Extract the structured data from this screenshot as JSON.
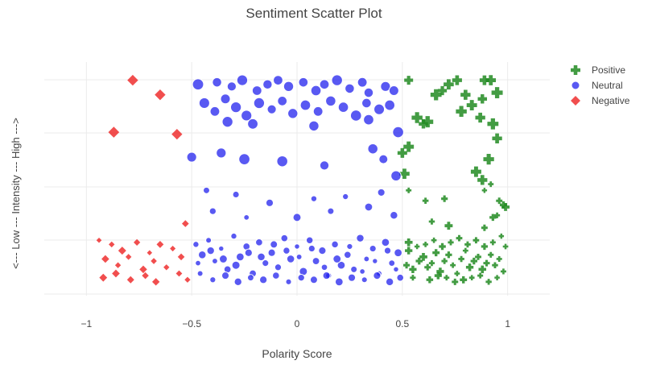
{
  "chart_data": {
    "type": "scatter",
    "title": "Sentiment Scatter Plot",
    "xlabel": "Polarity Score",
    "ylabel": "<--- Low --- Intensity --- High --->",
    "xlim": [
      -1.2,
      1.2
    ],
    "ylim": [
      0,
      1
    ],
    "x_ticks": [
      -1,
      -0.5,
      0,
      0.5,
      1
    ],
    "x_tick_labels": [
      "−1",
      "−0.5",
      "0",
      "0.5",
      "1"
    ],
    "y_tick_labels_shown": false,
    "grid": true,
    "legend_position": "top-right",
    "series": [
      {
        "name": "Positive",
        "marker": "cross",
        "color": "#228B22",
        "points": [
          [
            0.53,
            0.99
          ],
          [
            0.66,
            0.92
          ],
          [
            0.69,
            0.94
          ],
          [
            0.72,
            0.97
          ],
          [
            0.76,
            0.99
          ],
          [
            0.8,
            0.92
          ],
          [
            0.83,
            0.87
          ],
          [
            0.88,
            0.9
          ],
          [
            0.89,
            0.99
          ],
          [
            0.92,
            0.99
          ],
          [
            0.95,
            0.93
          ],
          [
            0.57,
            0.81
          ],
          [
            0.6,
            0.78
          ],
          [
            0.62,
            0.79
          ],
          [
            0.78,
            0.84
          ],
          [
            0.87,
            0.81
          ],
          [
            0.93,
            0.78
          ],
          [
            0.95,
            0.71
          ],
          [
            0.53,
            0.67
          ],
          [
            0.5,
            0.64
          ],
          [
            0.91,
            0.61
          ],
          [
            0.51,
            0.54
          ],
          [
            0.85,
            0.55
          ],
          [
            0.88,
            0.51
          ],
          [
            0.53,
            0.46
          ],
          [
            0.61,
            0.41
          ],
          [
            0.7,
            0.42
          ],
          [
            0.89,
            0.46
          ],
          [
            0.92,
            0.49
          ],
          [
            0.96,
            0.41
          ],
          [
            0.99,
            0.38
          ],
          [
            0.98,
            0.39
          ],
          [
            0.64,
            0.31
          ],
          [
            0.89,
            0.28
          ],
          [
            0.95,
            0.34
          ],
          [
            0.93,
            0.33
          ],
          [
            0.72,
            0.29
          ],
          [
            0.53,
            0.21
          ],
          [
            0.52,
            0.1
          ],
          [
            0.55,
            0.08
          ],
          [
            0.58,
            0.12
          ],
          [
            0.6,
            0.14
          ],
          [
            0.62,
            0.09
          ],
          [
            0.64,
            0.11
          ],
          [
            0.66,
            0.16
          ],
          [
            0.68,
            0.07
          ],
          [
            0.7,
            0.12
          ],
          [
            0.72,
            0.15
          ],
          [
            0.74,
            0.1
          ],
          [
            0.76,
            0.06
          ],
          [
            0.78,
            0.13
          ],
          [
            0.8,
            0.17
          ],
          [
            0.82,
            0.09
          ],
          [
            0.84,
            0.12
          ],
          [
            0.86,
            0.14
          ],
          [
            0.88,
            0.08
          ],
          [
            0.9,
            0.11
          ],
          [
            0.92,
            0.15
          ],
          [
            0.94,
            0.1
          ],
          [
            0.96,
            0.13
          ],
          [
            0.98,
            0.07
          ],
          [
            0.99,
            0.19
          ],
          [
            0.53,
            0.17
          ],
          [
            0.57,
            0.19
          ],
          [
            0.61,
            0.2
          ],
          [
            0.65,
            0.22
          ],
          [
            0.69,
            0.19
          ],
          [
            0.73,
            0.21
          ],
          [
            0.77,
            0.23
          ],
          [
            0.81,
            0.2
          ],
          [
            0.85,
            0.22
          ],
          [
            0.89,
            0.19
          ],
          [
            0.93,
            0.21
          ],
          [
            0.97,
            0.24
          ],
          [
            0.55,
            0.04
          ],
          [
            0.63,
            0.03
          ],
          [
            0.71,
            0.04
          ],
          [
            0.79,
            0.03
          ],
          [
            0.87,
            0.05
          ],
          [
            0.95,
            0.04
          ],
          [
            0.67,
            0.05
          ],
          [
            0.75,
            0.02
          ],
          [
            0.83,
            0.04
          ],
          [
            0.91,
            0.02
          ]
        ]
      },
      {
        "name": "Neutral",
        "marker": "circle",
        "color": "#2222EE",
        "points": [
          [
            -0.47,
            0.97
          ],
          [
            -0.38,
            0.98
          ],
          [
            -0.31,
            0.96
          ],
          [
            -0.26,
            0.99
          ],
          [
            -0.19,
            0.94
          ],
          [
            -0.14,
            0.97
          ],
          [
            -0.09,
            0.99
          ],
          [
            -0.04,
            0.96
          ],
          [
            0.03,
            0.98
          ],
          [
            0.09,
            0.94
          ],
          [
            0.13,
            0.97
          ],
          [
            0.19,
            0.99
          ],
          [
            0.25,
            0.95
          ],
          [
            0.31,
            0.98
          ],
          [
            0.34,
            0.93
          ],
          [
            0.42,
            0.96
          ],
          [
            0.46,
            0.94
          ],
          [
            -0.44,
            0.88
          ],
          [
            -0.39,
            0.84
          ],
          [
            -0.34,
            0.9
          ],
          [
            -0.29,
            0.86
          ],
          [
            -0.24,
            0.82
          ],
          [
            -0.18,
            0.88
          ],
          [
            -0.12,
            0.85
          ],
          [
            -0.07,
            0.89
          ],
          [
            -0.02,
            0.83
          ],
          [
            0.04,
            0.87
          ],
          [
            0.1,
            0.84
          ],
          [
            0.16,
            0.89
          ],
          [
            0.22,
            0.86
          ],
          [
            0.28,
            0.82
          ],
          [
            0.33,
            0.88
          ],
          [
            0.39,
            0.85
          ],
          [
            0.44,
            0.87
          ],
          [
            -0.33,
            0.79
          ],
          [
            -0.21,
            0.78
          ],
          [
            0.08,
            0.77
          ],
          [
            0.34,
            0.8
          ],
          [
            0.48,
            0.74
          ],
          [
            -0.5,
            0.62
          ],
          [
            -0.36,
            0.64
          ],
          [
            -0.25,
            0.61
          ],
          [
            -0.07,
            0.6
          ],
          [
            0.13,
            0.58
          ],
          [
            0.36,
            0.66
          ],
          [
            0.41,
            0.61
          ],
          [
            0.47,
            0.53
          ],
          [
            -0.43,
            0.46
          ],
          [
            -0.29,
            0.44
          ],
          [
            -0.13,
            0.4
          ],
          [
            0.08,
            0.42
          ],
          [
            0.23,
            0.43
          ],
          [
            0.4,
            0.45
          ],
          [
            -0.4,
            0.36
          ],
          [
            -0.24,
            0.33
          ],
          [
            0.0,
            0.33
          ],
          [
            0.16,
            0.36
          ],
          [
            0.34,
            0.38
          ],
          [
            0.46,
            0.34
          ],
          [
            -0.48,
            0.2
          ],
          [
            -0.45,
            0.15
          ],
          [
            -0.42,
            0.22
          ],
          [
            -0.39,
            0.12
          ],
          [
            -0.36,
            0.18
          ],
          [
            -0.33,
            0.08
          ],
          [
            -0.3,
            0.24
          ],
          [
            -0.27,
            0.14
          ],
          [
            -0.24,
            0.19
          ],
          [
            -0.21,
            0.06
          ],
          [
            -0.18,
            0.21
          ],
          [
            -0.15,
            0.11
          ],
          [
            -0.12,
            0.16
          ],
          [
            -0.09,
            0.09
          ],
          [
            -0.06,
            0.23
          ],
          [
            -0.03,
            0.13
          ],
          [
            0.0,
            0.19
          ],
          [
            0.03,
            0.07
          ],
          [
            0.06,
            0.22
          ],
          [
            0.09,
            0.12
          ],
          [
            0.12,
            0.17
          ],
          [
            0.15,
            0.05
          ],
          [
            0.18,
            0.2
          ],
          [
            0.21,
            0.1
          ],
          [
            0.24,
            0.15
          ],
          [
            0.27,
            0.08
          ],
          [
            0.3,
            0.23
          ],
          [
            0.33,
            0.13
          ],
          [
            0.36,
            0.18
          ],
          [
            0.39,
            0.06
          ],
          [
            0.42,
            0.21
          ],
          [
            0.45,
            0.11
          ],
          [
            0.48,
            0.16
          ],
          [
            -0.46,
            0.06
          ],
          [
            -0.4,
            0.03
          ],
          [
            -0.34,
            0.05
          ],
          [
            -0.28,
            0.02
          ],
          [
            -0.22,
            0.04
          ],
          [
            -0.16,
            0.03
          ],
          [
            -0.1,
            0.05
          ],
          [
            -0.04,
            0.02
          ],
          [
            0.02,
            0.04
          ],
          [
            0.08,
            0.03
          ],
          [
            0.14,
            0.05
          ],
          [
            0.2,
            0.02
          ],
          [
            0.26,
            0.04
          ],
          [
            0.32,
            0.03
          ],
          [
            0.38,
            0.05
          ],
          [
            0.44,
            0.02
          ],
          [
            0.49,
            0.04
          ],
          [
            -0.47,
            0.11
          ],
          [
            -0.41,
            0.17
          ],
          [
            -0.35,
            0.13
          ],
          [
            -0.29,
            0.1
          ],
          [
            -0.23,
            0.16
          ],
          [
            -0.17,
            0.14
          ],
          [
            -0.11,
            0.2
          ],
          [
            -0.05,
            0.17
          ],
          [
            0.01,
            0.14
          ],
          [
            0.07,
            0.18
          ],
          [
            0.13,
            0.09
          ],
          [
            0.19,
            0.13
          ],
          [
            0.25,
            0.19
          ],
          [
            0.31,
            0.07
          ],
          [
            0.37,
            0.12
          ],
          [
            0.43,
            0.17
          ],
          [
            0.47,
            0.08
          ]
        ]
      },
      {
        "name": "Negative",
        "marker": "diamond",
        "color": "#EE2222",
        "points": [
          [
            -0.78,
            0.99
          ],
          [
            -0.65,
            0.92
          ],
          [
            -0.87,
            0.74
          ],
          [
            -0.57,
            0.73
          ],
          [
            -0.53,
            0.3
          ],
          [
            -0.94,
            0.22
          ],
          [
            -0.88,
            0.2
          ],
          [
            -0.83,
            0.17
          ],
          [
            -0.76,
            0.21
          ],
          [
            -0.7,
            0.16
          ],
          [
            -0.65,
            0.2
          ],
          [
            -0.59,
            0.18
          ],
          [
            -0.55,
            0.14
          ],
          [
            -0.91,
            0.13
          ],
          [
            -0.85,
            0.1
          ],
          [
            -0.8,
            0.14
          ],
          [
            -0.73,
            0.08
          ],
          [
            -0.68,
            0.12
          ],
          [
            -0.62,
            0.09
          ],
          [
            -0.92,
            0.04
          ],
          [
            -0.86,
            0.06
          ],
          [
            -0.79,
            0.03
          ],
          [
            -0.72,
            0.05
          ],
          [
            -0.67,
            0.02
          ],
          [
            -0.56,
            0.06
          ],
          [
            -0.52,
            0.03
          ]
        ]
      }
    ]
  }
}
